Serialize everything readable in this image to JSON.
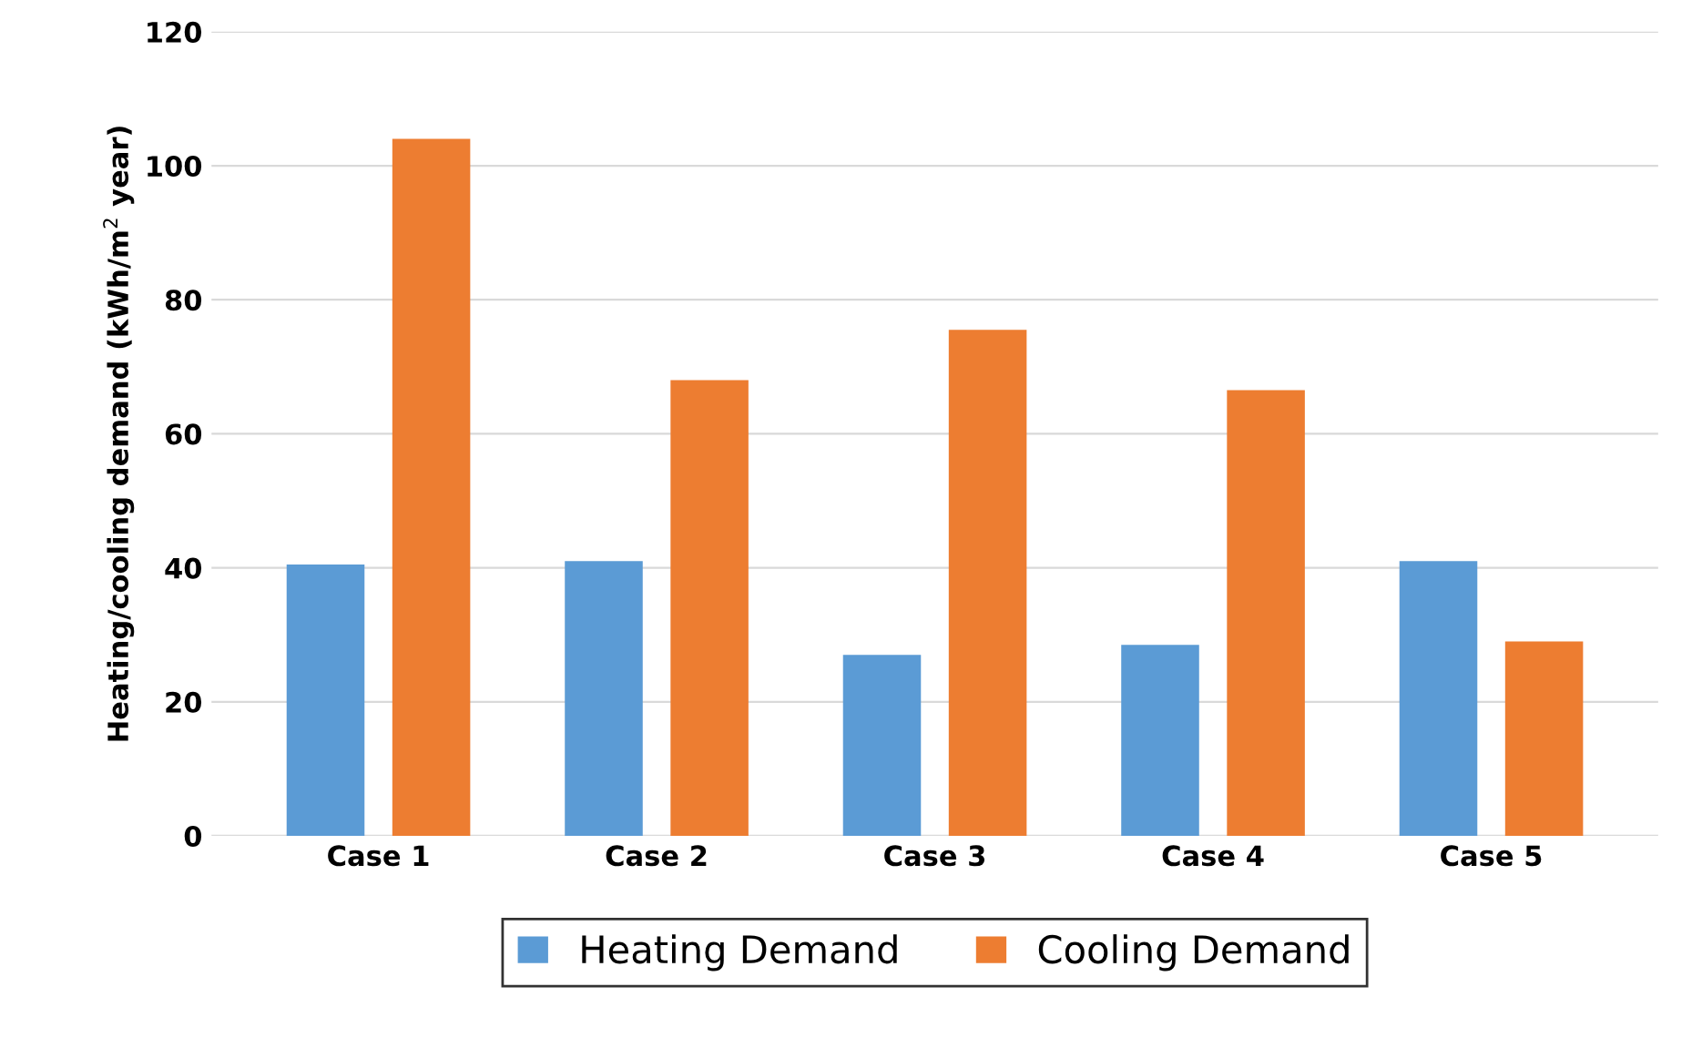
{
  "chart_data": {
    "type": "bar",
    "ylabel": "Heating/cooling demand (kWh/m$^{2}$ year)",
    "categories": [
      "Case 1",
      "Case 2",
      "Case 3",
      "Case 4",
      "Case 5"
    ],
    "series": [
      {
        "name": "Heating Demand",
        "color": "#5b9bd5",
        "values": [
          40.5,
          41,
          27,
          28.5,
          41
        ]
      },
      {
        "name": "Cooling Demand",
        "color": "#ed7d31",
        "values": [
          104,
          68,
          75.5,
          66.5,
          29
        ]
      }
    ],
    "ylim": [
      0,
      120
    ],
    "yticks": [
      0,
      20,
      40,
      60,
      80,
      100,
      120
    ],
    "grid": "y",
    "legend": "bottom"
  }
}
